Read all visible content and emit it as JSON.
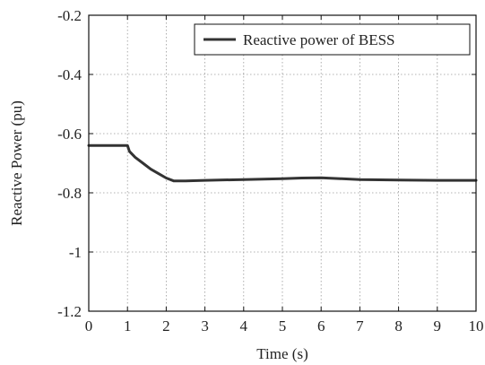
{
  "chart_data": {
    "type": "line",
    "title": "",
    "xlabel": "Time (s)",
    "ylabel": "Reactive Power (pu)",
    "xlim": [
      0,
      10
    ],
    "ylim": [
      -1.2,
      -0.2
    ],
    "xticks": [
      0,
      1,
      2,
      3,
      4,
      5,
      6,
      7,
      8,
      9,
      10
    ],
    "xtick_labels": [
      "0",
      "1",
      "2",
      "3",
      "4",
      "5",
      "6",
      "7",
      "8",
      "9",
      "10"
    ],
    "yticks": [
      -1.2,
      -1.0,
      -0.8,
      -0.6,
      -0.4,
      -0.2
    ],
    "ytick_labels": [
      "-1.2",
      "-1",
      "-0.8",
      "-0.6",
      "-0.4",
      "-0.2"
    ],
    "grid": true,
    "legend_position": "top-right",
    "series": [
      {
        "name": "Reactive power of BESS",
        "color": "#333333",
        "x": [
          0,
          1.0,
          1.05,
          1.2,
          1.4,
          1.6,
          1.8,
          2.0,
          2.2,
          2.5,
          3.0,
          4.0,
          5.0,
          5.5,
          6.0,
          6.5,
          7.0,
          8.0,
          9.0,
          10.0
        ],
        "y": [
          -0.64,
          -0.64,
          -0.66,
          -0.68,
          -0.7,
          -0.72,
          -0.735,
          -0.75,
          -0.76,
          -0.76,
          -0.758,
          -0.755,
          -0.752,
          -0.75,
          -0.749,
          -0.752,
          -0.755,
          -0.757,
          -0.758,
          -0.758
        ]
      }
    ]
  }
}
